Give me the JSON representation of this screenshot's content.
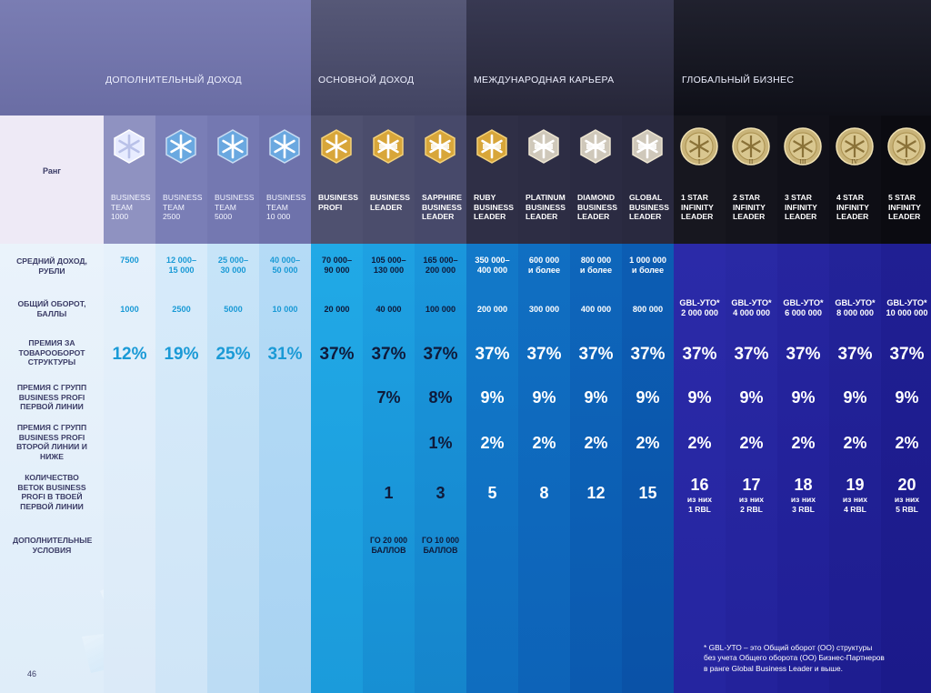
{
  "sections": [
    {
      "label": "Дополнительный доход"
    },
    {
      "label": "Основной доход"
    },
    {
      "label": "Международная карьера"
    },
    {
      "label": "Глобальный бизнес"
    }
  ],
  "rank_header": "Ранг",
  "row_labels": [
    "Средний доход, рубли",
    "Общий оборот, баллы",
    "Премия за товарооборот структуры",
    "Премия с групп Business Profi первой линии",
    "Премия с групп Business Profi второй линии и ниже",
    "Количество веток Business Profi в твоей первой линии",
    "Дополнительные условия"
  ],
  "columns": [
    {
      "rank": [
        "BUSINESS",
        "TEAM",
        "1000"
      ],
      "badge": "snowflake-badge-white",
      "income": "7500",
      "turnover": "1000",
      "bonus": "12%",
      "p1": "",
      "p2": "",
      "branches": "",
      "branches_sub": "",
      "conditions": ""
    },
    {
      "rank": [
        "BUSINESS",
        "TEAM",
        "2500"
      ],
      "badge": "snowflake-badge-blue-1",
      "income": "12 000–\n15 000",
      "turnover": "2500",
      "bonus": "19%",
      "p1": "",
      "p2": "",
      "branches": "",
      "branches_sub": "",
      "conditions": ""
    },
    {
      "rank": [
        "BUSINESS",
        "TEAM",
        "5000"
      ],
      "badge": "snowflake-badge-blue-2",
      "income": "25 000–\n30 000",
      "turnover": "5000",
      "bonus": "25%",
      "p1": "",
      "p2": "",
      "branches": "",
      "branches_sub": "",
      "conditions": ""
    },
    {
      "rank": [
        "BUSINESS",
        "TEAM",
        "10 000"
      ],
      "badge": "snowflake-badge-blue-3",
      "income": "40 000–\n50 000",
      "turnover": "10 000",
      "bonus": "31%",
      "p1": "",
      "p2": "",
      "branches": "",
      "branches_sub": "",
      "conditions": ""
    },
    {
      "rank": [
        "BUSINESS",
        "PROFI"
      ],
      "badge": "snowflake-badge-gold-blue",
      "income": "70 000–\n90 000",
      "turnover": "20 000",
      "bonus": "37%",
      "p1": "",
      "p2": "",
      "branches": "",
      "branches_sub": "",
      "conditions": ""
    },
    {
      "rank": [
        "BUSINESS",
        "LEADER"
      ],
      "badge": "snowflake-badge-gold",
      "income": "105 000–\n130 000",
      "turnover": "40 000",
      "bonus": "37%",
      "p1": "7%",
      "p2": "",
      "branches": "1",
      "branches_sub": "",
      "conditions": "ГО 20 000\nБАЛЛОВ"
    },
    {
      "rank": [
        "SAPPHIRE",
        "BUSINESS",
        "LEADER"
      ],
      "badge": "snowflake-badge-gold-sapphire",
      "income": "165 000–\n200 000",
      "turnover": "100 000",
      "bonus": "37%",
      "p1": "8%",
      "p2": "1%",
      "branches": "3",
      "branches_sub": "",
      "conditions": "ГО 10 000\nБАЛЛОВ"
    },
    {
      "rank": [
        "RUBY",
        "BUSINESS",
        "LEADER"
      ],
      "badge": "snowflake-badge-gold-ruby",
      "income": "350 000–\n400 000",
      "turnover": "200 000",
      "bonus": "37%",
      "p1": "9%",
      "p2": "2%",
      "branches": "5",
      "branches_sub": "",
      "conditions": ""
    },
    {
      "rank": [
        "PLATINUM",
        "BUSINESS",
        "LEADER"
      ],
      "badge": "snowflake-badge-platinum",
      "income": "600 000\nи более",
      "turnover": "300 000",
      "bonus": "37%",
      "p1": "9%",
      "p2": "2%",
      "branches": "8",
      "branches_sub": "",
      "conditions": ""
    },
    {
      "rank": [
        "DIAMOND",
        "BUSINESS",
        "LEADER"
      ],
      "badge": "snowflake-badge-diamond",
      "income": "800 000\nи более",
      "turnover": "400 000",
      "bonus": "37%",
      "p1": "9%",
      "p2": "2%",
      "branches": "12",
      "branches_sub": "",
      "conditions": ""
    },
    {
      "rank": [
        "GLOBAL",
        "BUSINESS",
        "LEADER"
      ],
      "badge": "snowflake-badge-silver",
      "income": "1 000 000\nи более",
      "turnover": "800 000",
      "bonus": "37%",
      "p1": "9%",
      "p2": "2%",
      "branches": "15",
      "branches_sub": "",
      "conditions": ""
    },
    {
      "rank": [
        "1 STAR",
        "INFINITY",
        "LEADER"
      ],
      "badge": "infinity-medal-1",
      "medal": "I",
      "income": "",
      "turnover": "GBL-УТО*\n2 000 000",
      "bonus": "37%",
      "p1": "9%",
      "p2": "2%",
      "branches": "16",
      "branches_sub": "из них\n1 RBL",
      "conditions": ""
    },
    {
      "rank": [
        "2 STAR",
        "INFINITY",
        "LEADER"
      ],
      "badge": "infinity-medal-2",
      "medal": "II",
      "income": "",
      "turnover": "GBL-УТО*\n4 000 000",
      "bonus": "37%",
      "p1": "9%",
      "p2": "2%",
      "branches": "17",
      "branches_sub": "из них\n2 RBL",
      "conditions": ""
    },
    {
      "rank": [
        "3 STAR",
        "INFINITY",
        "LEADER"
      ],
      "badge": "infinity-medal-3",
      "medal": "III",
      "income": "",
      "turnover": "GBL-УТО*\n6 000 000",
      "bonus": "37%",
      "p1": "9%",
      "p2": "2%",
      "branches": "18",
      "branches_sub": "из них\n3 RBL",
      "conditions": ""
    },
    {
      "rank": [
        "4 STAR",
        "INFINITY",
        "LEADER"
      ],
      "badge": "infinity-medal-4",
      "medal": "IV",
      "income": "",
      "turnover": "GBL-УТО*\n8 000 000",
      "bonus": "37%",
      "p1": "9%",
      "p2": "2%",
      "branches": "19",
      "branches_sub": "из них\n4 RBL",
      "conditions": ""
    },
    {
      "rank": [
        "5 STAR",
        "INFINITY",
        "LEADER"
      ],
      "badge": "infinity-medal-5",
      "medal": "V",
      "income": "",
      "turnover": "GBL-УТО*\n10 000 000",
      "bonus": "37%",
      "p1": "9%",
      "p2": "2%",
      "branches": "20",
      "branches_sub": "из них\n5 RBL",
      "conditions": ""
    }
  ],
  "footnote": "* GBL-УТО – это Общий оборот (ОО) структуры\nбез учета Общего оборота (ОО) Бизнес-Партнеров\nв ранге Global Business Leader и выше.",
  "page_number": "46",
  "colors": {
    "section1": "#6c6fa3",
    "section2": "#4c4e6f",
    "section3": "#2f2f45",
    "section4": "#191a24",
    "label_text": "#3b3c66",
    "accent_blue": "#1a9ad6"
  }
}
